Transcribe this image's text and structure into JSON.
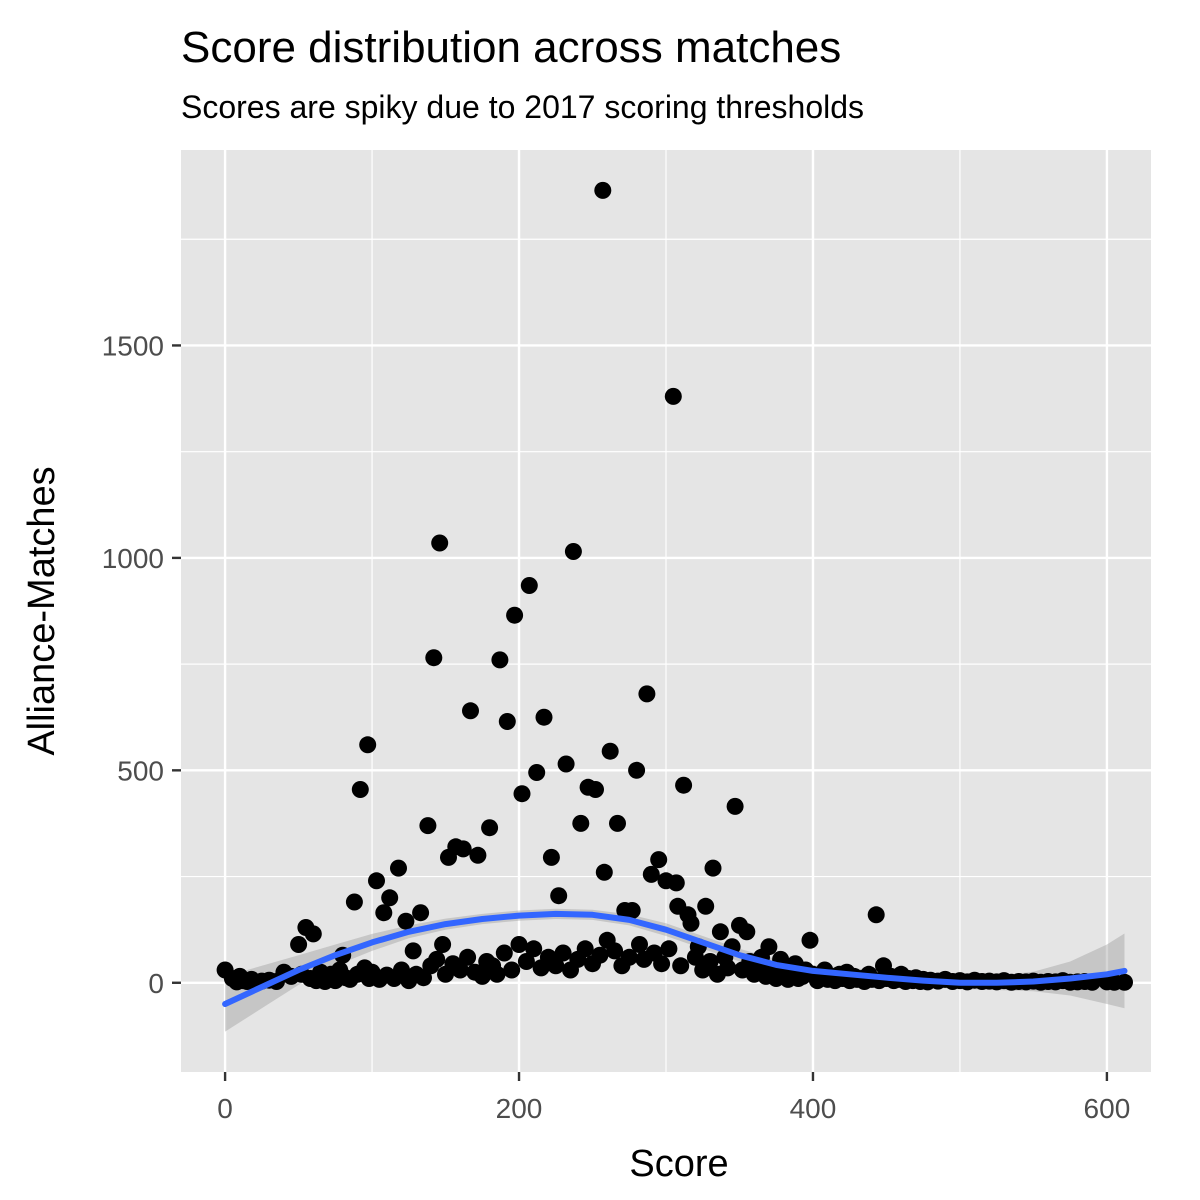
{
  "chart_data": {
    "type": "scatter",
    "title": "Score distribution across matches",
    "subtitle": "Scores are spiky due to 2017 scoring thresholds",
    "xlabel": "Score",
    "ylabel": "Alliance-Matches",
    "xlim": [
      -30,
      630
    ],
    "ylim": [
      -210,
      1960
    ],
    "x_ticks": [
      0,
      200,
      400,
      600
    ],
    "y_ticks": [
      0,
      500,
      1000,
      1500
    ],
    "x_tick_labels": [
      "0",
      "200",
      "400",
      "600"
    ],
    "y_tick_labels": [
      "0",
      "500",
      "1000",
      "1500"
    ],
    "grid": true,
    "panel_background": "#e5e5e5",
    "grid_color": "#ffffff",
    "point_color": "#000000",
    "smooth_color": "#3366ff",
    "ribbon_color": "#999999",
    "points": [
      [
        0,
        30
      ],
      [
        5,
        10
      ],
      [
        8,
        2
      ],
      [
        10,
        15
      ],
      [
        12,
        5
      ],
      [
        15,
        3
      ],
      [
        18,
        8
      ],
      [
        20,
        2
      ],
      [
        25,
        4
      ],
      [
        30,
        6
      ],
      [
        35,
        3
      ],
      [
        40,
        25
      ],
      [
        45,
        15
      ],
      [
        50,
        90
      ],
      [
        52,
        20
      ],
      [
        55,
        130
      ],
      [
        58,
        10
      ],
      [
        60,
        115
      ],
      [
        62,
        5
      ],
      [
        65,
        25
      ],
      [
        68,
        3
      ],
      [
        70,
        10
      ],
      [
        72,
        20
      ],
      [
        75,
        5
      ],
      [
        78,
        30
      ],
      [
        80,
        65
      ],
      [
        82,
        12
      ],
      [
        85,
        8
      ],
      [
        88,
        190
      ],
      [
        90,
        20
      ],
      [
        92,
        455
      ],
      [
        95,
        35
      ],
      [
        97,
        560
      ],
      [
        98,
        10
      ],
      [
        100,
        25
      ],
      [
        103,
        240
      ],
      [
        105,
        8
      ],
      [
        108,
        165
      ],
      [
        110,
        18
      ],
      [
        112,
        200
      ],
      [
        115,
        10
      ],
      [
        118,
        270
      ],
      [
        120,
        30
      ],
      [
        123,
        145
      ],
      [
        125,
        5
      ],
      [
        128,
        75
      ],
      [
        130,
        20
      ],
      [
        133,
        165
      ],
      [
        135,
        12
      ],
      [
        138,
        370
      ],
      [
        140,
        40
      ],
      [
        142,
        765
      ],
      [
        144,
        55
      ],
      [
        146,
        1035
      ],
      [
        148,
        90
      ],
      [
        150,
        20
      ],
      [
        152,
        295
      ],
      [
        155,
        45
      ],
      [
        157,
        320
      ],
      [
        160,
        30
      ],
      [
        162,
        315
      ],
      [
        165,
        60
      ],
      [
        167,
        640
      ],
      [
        170,
        25
      ],
      [
        172,
        300
      ],
      [
        175,
        15
      ],
      [
        178,
        50
      ],
      [
        180,
        365
      ],
      [
        182,
        40
      ],
      [
        185,
        20
      ],
      [
        187,
        760
      ],
      [
        190,
        70
      ],
      [
        192,
        615
      ],
      [
        195,
        30
      ],
      [
        197,
        865
      ],
      [
        200,
        90
      ],
      [
        202,
        445
      ],
      [
        205,
        50
      ],
      [
        207,
        935
      ],
      [
        210,
        80
      ],
      [
        212,
        495
      ],
      [
        215,
        35
      ],
      [
        217,
        625
      ],
      [
        220,
        60
      ],
      [
        222,
        295
      ],
      [
        225,
        40
      ],
      [
        227,
        205
      ],
      [
        230,
        70
      ],
      [
        232,
        515
      ],
      [
        235,
        30
      ],
      [
        237,
        1015
      ],
      [
        240,
        55
      ],
      [
        242,
        375
      ],
      [
        245,
        80
      ],
      [
        247,
        460
      ],
      [
        250,
        45
      ],
      [
        252,
        455
      ],
      [
        255,
        65
      ],
      [
        257,
        1865
      ],
      [
        258,
        260
      ],
      [
        260,
        100
      ],
      [
        262,
        545
      ],
      [
        265,
        75
      ],
      [
        267,
        375
      ],
      [
        270,
        40
      ],
      [
        272,
        170
      ],
      [
        275,
        60
      ],
      [
        277,
        170
      ],
      [
        280,
        500
      ],
      [
        282,
        90
      ],
      [
        285,
        55
      ],
      [
        287,
        680
      ],
      [
        290,
        255
      ],
      [
        292,
        70
      ],
      [
        295,
        290
      ],
      [
        297,
        45
      ],
      [
        300,
        240
      ],
      [
        302,
        80
      ],
      [
        305,
        1380
      ],
      [
        307,
        235
      ],
      [
        308,
        180
      ],
      [
        310,
        40
      ],
      [
        312,
        465
      ],
      [
        315,
        160
      ],
      [
        317,
        140
      ],
      [
        320,
        60
      ],
      [
        322,
        85
      ],
      [
        325,
        30
      ],
      [
        327,
        180
      ],
      [
        330,
        50
      ],
      [
        332,
        270
      ],
      [
        335,
        20
      ],
      [
        337,
        120
      ],
      [
        340,
        60
      ],
      [
        342,
        35
      ],
      [
        345,
        85
      ],
      [
        347,
        415
      ],
      [
        350,
        135
      ],
      [
        352,
        30
      ],
      [
        355,
        120
      ],
      [
        357,
        50
      ],
      [
        360,
        20
      ],
      [
        362,
        40
      ],
      [
        365,
        60
      ],
      [
        368,
        15
      ],
      [
        370,
        85
      ],
      [
        372,
        30
      ],
      [
        375,
        10
      ],
      [
        378,
        55
      ],
      [
        380,
        25
      ],
      [
        383,
        8
      ],
      [
        385,
        20
      ],
      [
        388,
        45
      ],
      [
        390,
        10
      ],
      [
        393,
        15
      ],
      [
        395,
        30
      ],
      [
        398,
        100
      ],
      [
        400,
        20
      ],
      [
        403,
        5
      ],
      [
        405,
        12
      ],
      [
        408,
        30
      ],
      [
        410,
        8
      ],
      [
        413,
        15
      ],
      [
        415,
        5
      ],
      [
        418,
        20
      ],
      [
        420,
        10
      ],
      [
        423,
        25
      ],
      [
        425,
        5
      ],
      [
        428,
        15
      ],
      [
        430,
        8
      ],
      [
        433,
        10
      ],
      [
        435,
        3
      ],
      [
        438,
        20
      ],
      [
        440,
        8
      ],
      [
        443,
        160
      ],
      [
        445,
        5
      ],
      [
        448,
        40
      ],
      [
        450,
        10
      ],
      [
        453,
        15
      ],
      [
        455,
        5
      ],
      [
        458,
        8
      ],
      [
        460,
        20
      ],
      [
        463,
        3
      ],
      [
        465,
        10
      ],
      [
        468,
        5
      ],
      [
        470,
        12
      ],
      [
        473,
        3
      ],
      [
        475,
        8
      ],
      [
        478,
        2
      ],
      [
        480,
        6
      ],
      [
        485,
        4
      ],
      [
        490,
        8
      ],
      [
        495,
        3
      ],
      [
        500,
        5
      ],
      [
        505,
        2
      ],
      [
        510,
        6
      ],
      [
        515,
        3
      ],
      [
        520,
        4
      ],
      [
        525,
        2
      ],
      [
        530,
        5
      ],
      [
        535,
        1
      ],
      [
        540,
        3
      ],
      [
        545,
        2
      ],
      [
        550,
        4
      ],
      [
        555,
        1
      ],
      [
        560,
        3
      ],
      [
        565,
        2
      ],
      [
        570,
        5
      ],
      [
        575,
        1
      ],
      [
        580,
        2
      ],
      [
        585,
        3
      ],
      [
        590,
        1
      ],
      [
        600,
        2
      ],
      [
        605,
        1
      ],
      [
        612,
        1
      ]
    ],
    "smooth_line": [
      [
        0,
        -50
      ],
      [
        25,
        -10
      ],
      [
        50,
        30
      ],
      [
        75,
        65
      ],
      [
        100,
        95
      ],
      [
        125,
        120
      ],
      [
        150,
        138
      ],
      [
        175,
        150
      ],
      [
        200,
        158
      ],
      [
        225,
        162
      ],
      [
        250,
        160
      ],
      [
        275,
        148
      ],
      [
        300,
        125
      ],
      [
        325,
        95
      ],
      [
        350,
        65
      ],
      [
        375,
        42
      ],
      [
        400,
        28
      ],
      [
        425,
        20
      ],
      [
        450,
        12
      ],
      [
        475,
        5
      ],
      [
        500,
        0
      ],
      [
        525,
        0
      ],
      [
        550,
        3
      ],
      [
        575,
        10
      ],
      [
        600,
        20
      ],
      [
        612,
        28
      ]
    ],
    "smooth_band_lower": [
      [
        0,
        -115
      ],
      [
        25,
        -60
      ],
      [
        50,
        -5
      ],
      [
        75,
        40
      ],
      [
        100,
        75
      ],
      [
        125,
        105
      ],
      [
        150,
        125
      ],
      [
        175,
        138
      ],
      [
        200,
        146
      ],
      [
        225,
        150
      ],
      [
        250,
        148
      ],
      [
        275,
        135
      ],
      [
        300,
        110
      ],
      [
        325,
        80
      ],
      [
        350,
        50
      ],
      [
        375,
        28
      ],
      [
        400,
        15
      ],
      [
        425,
        5
      ],
      [
        450,
        -3
      ],
      [
        475,
        -10
      ],
      [
        500,
        -15
      ],
      [
        525,
        -17
      ],
      [
        550,
        -20
      ],
      [
        575,
        -30
      ],
      [
        600,
        -50
      ],
      [
        612,
        -60
      ]
    ],
    "smooth_band_upper": [
      [
        0,
        15
      ],
      [
        25,
        40
      ],
      [
        50,
        65
      ],
      [
        75,
        90
      ],
      [
        100,
        115
      ],
      [
        125,
        135
      ],
      [
        150,
        151
      ],
      [
        175,
        162
      ],
      [
        200,
        170
      ],
      [
        225,
        174
      ],
      [
        250,
        172
      ],
      [
        275,
        161
      ],
      [
        300,
        140
      ],
      [
        325,
        110
      ],
      [
        350,
        80
      ],
      [
        375,
        56
      ],
      [
        400,
        41
      ],
      [
        425,
        35
      ],
      [
        450,
        27
      ],
      [
        475,
        20
      ],
      [
        500,
        15
      ],
      [
        525,
        17
      ],
      [
        550,
        26
      ],
      [
        575,
        50
      ],
      [
        600,
        90
      ],
      [
        612,
        116
      ]
    ]
  }
}
